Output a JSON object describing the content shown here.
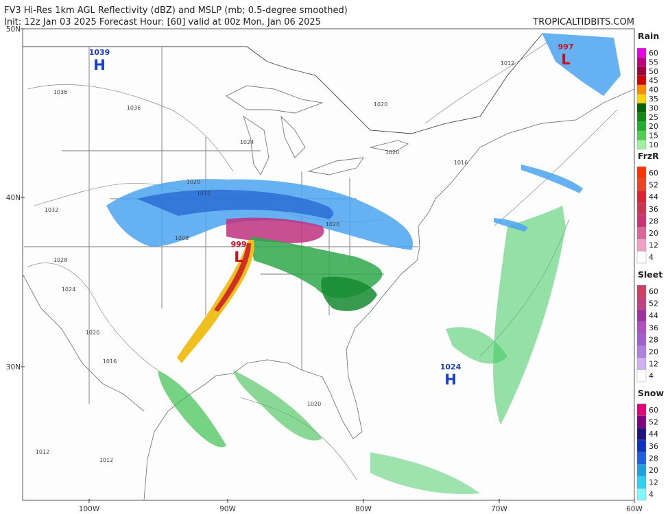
{
  "header": {
    "title": "FV3 Hi-Res 1km AGL Reflectivity (dBZ) and MSLP (mb; 0.5-degree smoothed)",
    "subtitle": "Init: 12z Jan 03 2025   Forecast Hour: [60]   valid at 00z Mon, Jan 06 2025",
    "credit": "TROPICALTIDBITS.COM"
  },
  "axes": {
    "lat_labels": [
      "50N",
      "40N",
      "30N"
    ],
    "lon_labels": [
      "100W",
      "90W",
      "80W",
      "70W",
      "60W"
    ]
  },
  "pressure_centers": [
    {
      "kind": "H",
      "value": "1039",
      "color": "#1a3fbf"
    },
    {
      "kind": "L",
      "value": "997",
      "color": "#cc1020"
    },
    {
      "kind": "L",
      "value": "999",
      "color": "#cc1020"
    },
    {
      "kind": "H",
      "value": "1024",
      "color": "#1a3fbf"
    }
  ],
  "isobar_labels": [
    "1036",
    "1036",
    "1032",
    "1028",
    "1024",
    "1020",
    "1016",
    "1012",
    "1012",
    "1008",
    "1024",
    "1020",
    "1016",
    "1020",
    "1020",
    "1012",
    "1016",
    "1020",
    "1020"
  ],
  "legends": [
    {
      "title": "Rain",
      "labels": [
        60,
        55,
        50,
        45,
        40,
        35,
        30,
        25,
        20,
        15,
        10
      ],
      "colors": [
        "#e800e8",
        "#c0007d",
        "#a0003c",
        "#d40000",
        "#ff8c00",
        "#ffd700",
        "#006400",
        "#108a10",
        "#20b030",
        "#50d050",
        "#a0f0a0"
      ]
    },
    {
      "title": "FrzR",
      "labels": [
        60,
        52,
        44,
        36,
        28,
        20,
        12,
        4
      ],
      "colors": [
        "#ff3300",
        "#ee4422",
        "#dd2233",
        "#cc3355",
        "#cc3377",
        "#dd6699",
        "#f0a0c0",
        "#ffffff"
      ]
    },
    {
      "title": "Sleet",
      "labels": [
        60,
        52,
        44,
        36,
        28,
        20,
        12,
        4
      ],
      "colors": [
        "#d04060",
        "#c04080",
        "#a030a0",
        "#b050c0",
        "#a060d0",
        "#b080e0",
        "#d0b0f0",
        "#ffffff"
      ]
    },
    {
      "title": "Snow",
      "labels": [
        60,
        52,
        44,
        36,
        28,
        20,
        12,
        4
      ],
      "colors": [
        "#e0007a",
        "#800080",
        "#201080",
        "#1030c0",
        "#2060e0",
        "#20a0e0",
        "#30d0f0",
        "#80f8ff"
      ]
    }
  ]
}
